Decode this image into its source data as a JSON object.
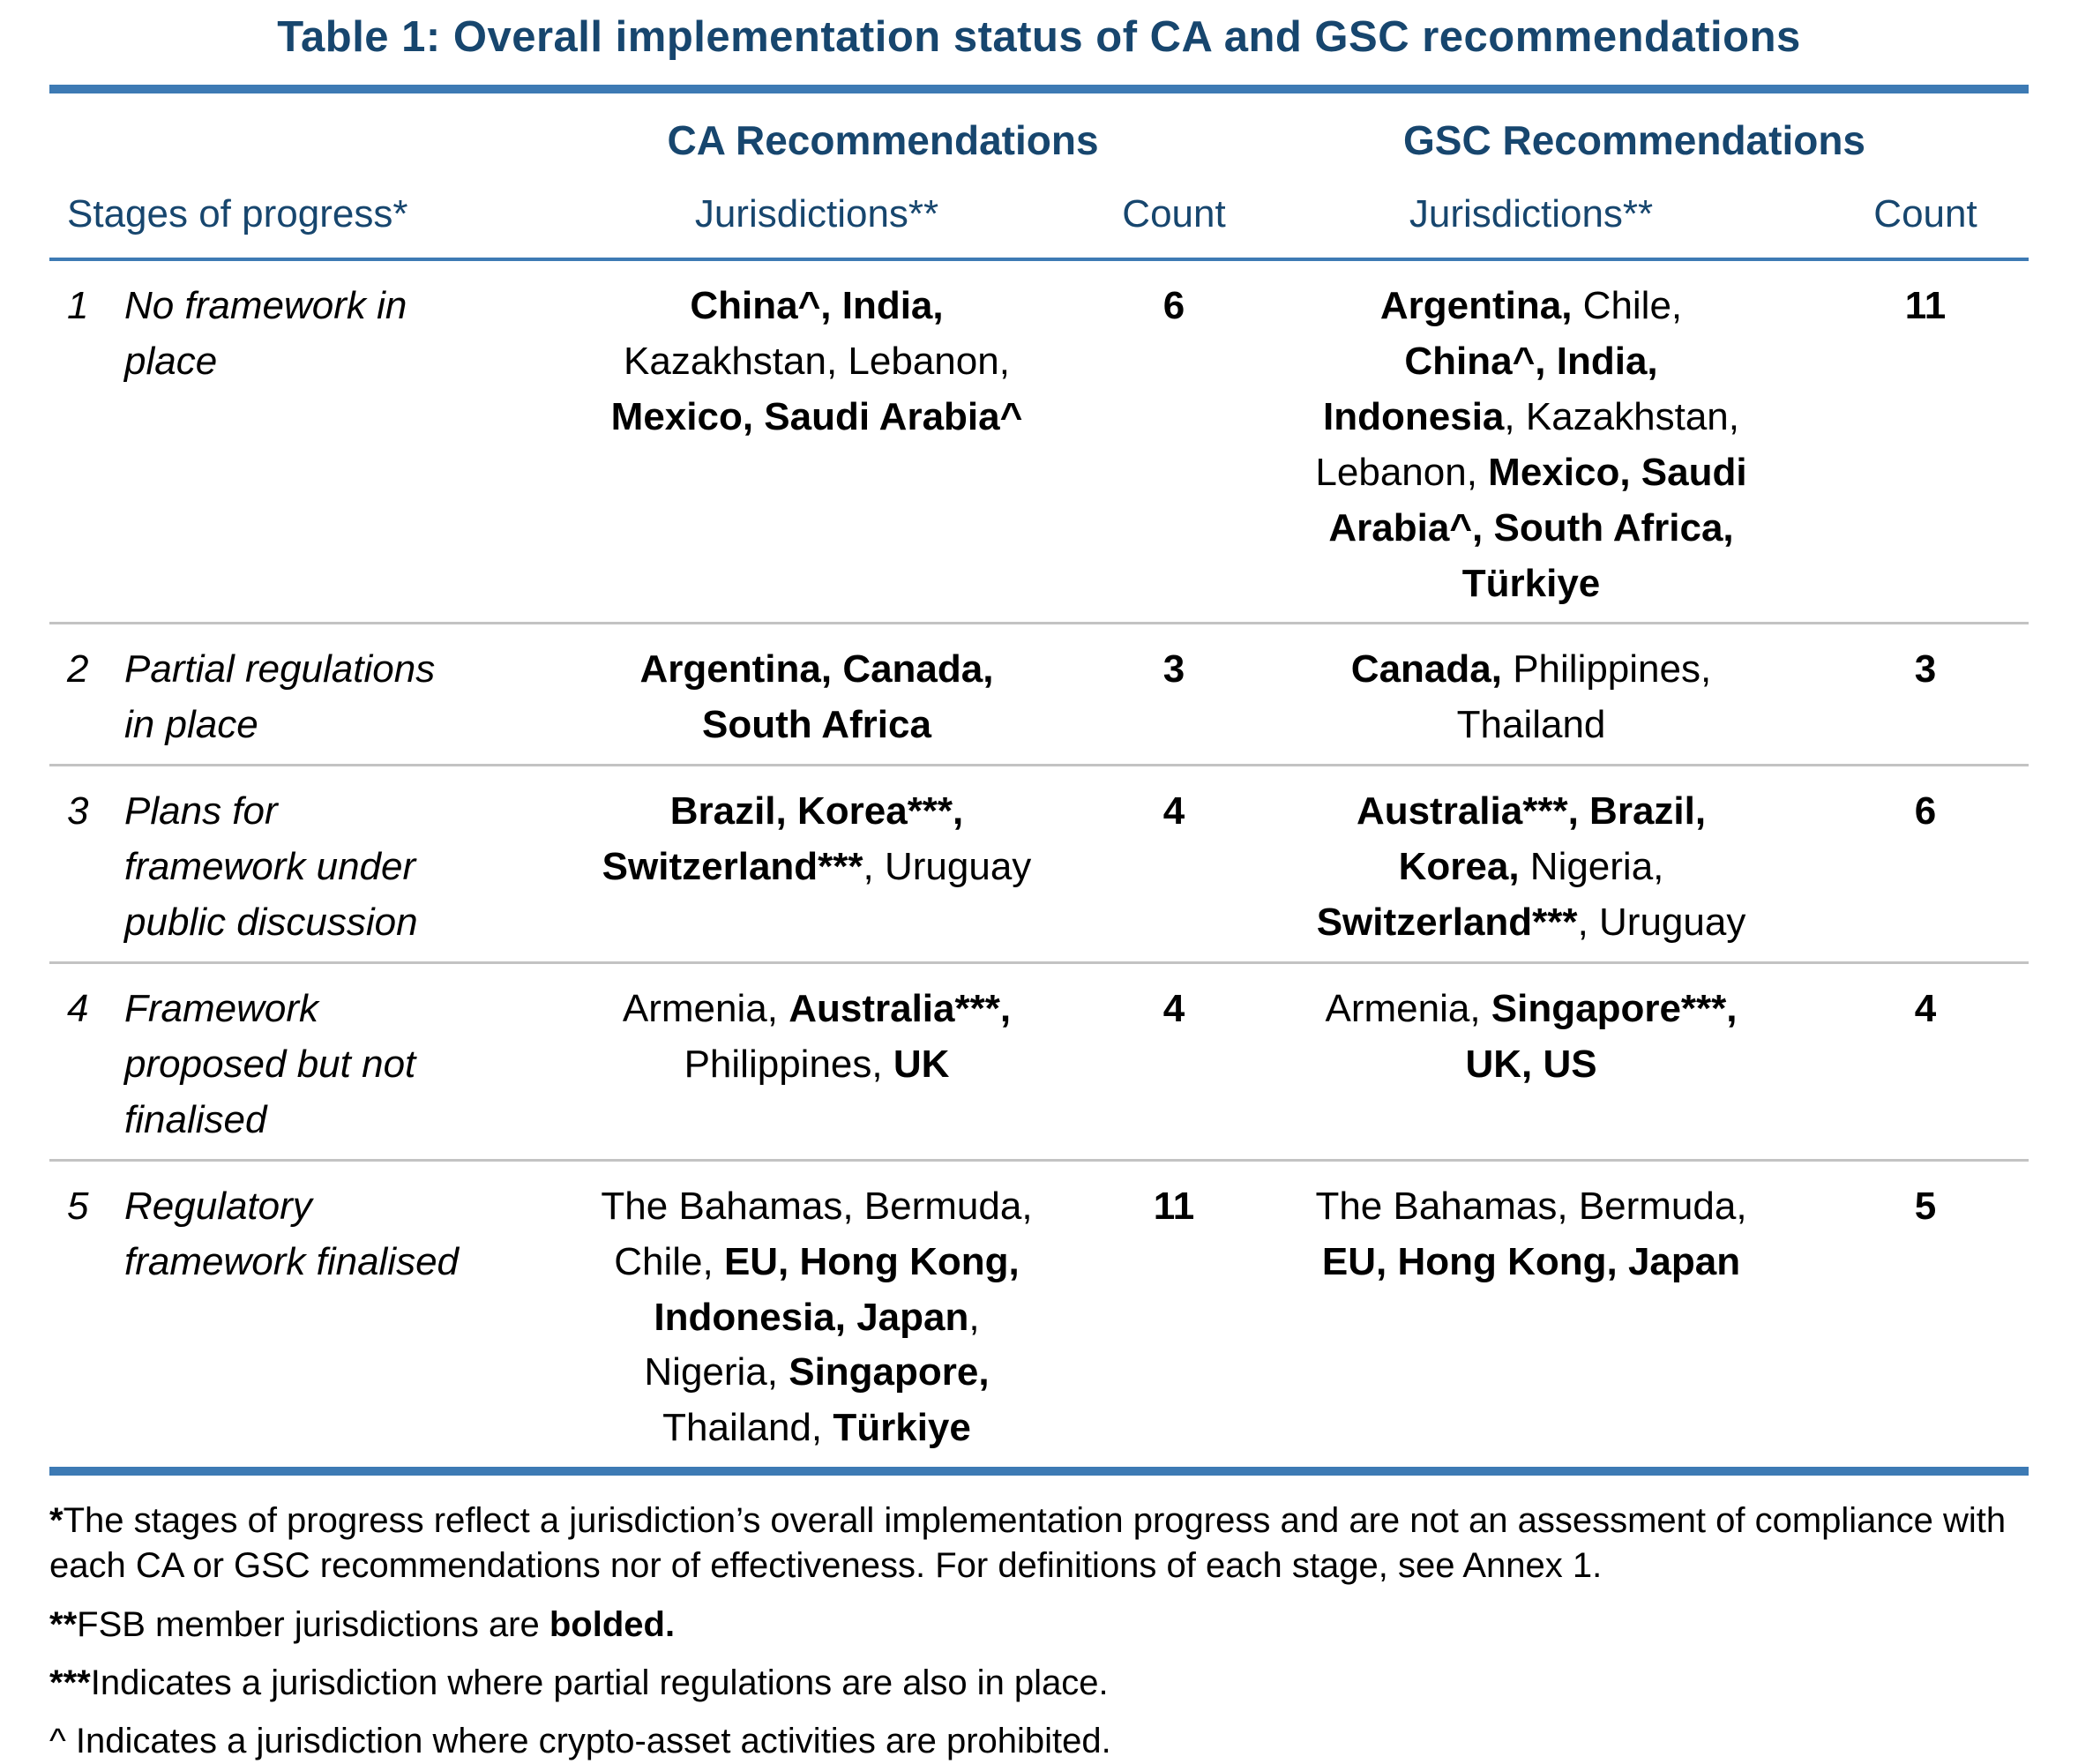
{
  "title": "Table 1: Overall implementation status of CA and GSC recommendations",
  "colors": {
    "navy": "#17466E",
    "bar_blue": "#3D7AB4",
    "separator_gray": "#C3C3C3",
    "text_black": "#000000"
  },
  "table": {
    "group_headers": {
      "ca": "CA Recommendations",
      "gsc": "GSC Recommendations"
    },
    "column_headers": {
      "stage": "Stages of progress*",
      "ca_jurisdictions": "Jurisdictions**",
      "ca_count": "Count",
      "gsc_jurisdictions": "Jurisdictions**",
      "gsc_count": "Count"
    },
    "rows": [
      {
        "num": "1",
        "stage_lines": [
          "No framework in",
          "place"
        ],
        "ca_jurisdictions": [
          {
            "text": "China^, India,",
            "bold": true
          },
          {
            "break": true
          },
          {
            "text": "Kazakhstan, Lebanon,"
          },
          {
            "break": true
          },
          {
            "text": "Mexico, Saudi Arabia^",
            "bold": true
          }
        ],
        "ca_count": "6",
        "gsc_jurisdictions": [
          {
            "text": "Argentina,",
            "bold": true
          },
          {
            "text": " Chile,"
          },
          {
            "break": true
          },
          {
            "text": "China^, India,",
            "bold": true
          },
          {
            "break": true
          },
          {
            "text": "Indonesia",
            "bold": true
          },
          {
            "text": ", Kazakhstan,"
          },
          {
            "break": true
          },
          {
            "text": "Lebanon, "
          },
          {
            "text": "Mexico, Saudi",
            "bold": true
          },
          {
            "break": true
          },
          {
            "text": "Arabia^, South Africa,",
            "bold": true
          },
          {
            "break": true
          },
          {
            "text": "Türkiye",
            "bold": true
          }
        ],
        "gsc_count": "11"
      },
      {
        "num": "2",
        "stage_lines": [
          "Partial regulations",
          "in place"
        ],
        "ca_jurisdictions": [
          {
            "text": "Argentina, Canada,",
            "bold": true
          },
          {
            "break": true
          },
          {
            "text": "South Africa",
            "bold": true
          }
        ],
        "ca_count": "3",
        "gsc_jurisdictions": [
          {
            "text": "Canada,",
            "bold": true
          },
          {
            "text": " Philippines,"
          },
          {
            "break": true
          },
          {
            "text": "Thailand"
          }
        ],
        "gsc_count": "3"
      },
      {
        "num": "3",
        "stage_lines": [
          "Plans for",
          "framework under",
          "public discussion"
        ],
        "ca_jurisdictions": [
          {
            "text": "Brazil, Korea***,",
            "bold": true
          },
          {
            "break": true
          },
          {
            "text": "Switzerland***",
            "bold": true
          },
          {
            "text": ", Uruguay"
          }
        ],
        "ca_count": "4",
        "gsc_jurisdictions": [
          {
            "text": "Australia***, Brazil,",
            "bold": true
          },
          {
            "break": true
          },
          {
            "text": "Korea,",
            "bold": true
          },
          {
            "text": " Nigeria,"
          },
          {
            "break": true
          },
          {
            "text": "Switzerland***",
            "bold": true
          },
          {
            "text": ", Uruguay"
          }
        ],
        "gsc_count": "6"
      },
      {
        "num": "4",
        "stage_lines": [
          "Framework",
          "proposed but not",
          "finalised"
        ],
        "ca_jurisdictions": [
          {
            "text": "Armenia, "
          },
          {
            "text": "Australia***,",
            "bold": true
          },
          {
            "break": true
          },
          {
            "text": "Philippines, "
          },
          {
            "text": "UK",
            "bold": true
          }
        ],
        "ca_count": "4",
        "gsc_jurisdictions": [
          {
            "text": "Armenia, "
          },
          {
            "text": "Singapore***,",
            "bold": true
          },
          {
            "break": true
          },
          {
            "text": "UK, US",
            "bold": true
          }
        ],
        "gsc_count": "4"
      },
      {
        "num": "5",
        "stage_lines": [
          "Regulatory",
          "framework finalised"
        ],
        "ca_jurisdictions": [
          {
            "text": "The Bahamas, Bermuda,"
          },
          {
            "break": true
          },
          {
            "text": "Chile, "
          },
          {
            "text": "EU, Hong Kong,",
            "bold": true
          },
          {
            "break": true
          },
          {
            "text": "Indonesia, Japan",
            "bold": true
          },
          {
            "text": ","
          },
          {
            "break": true
          },
          {
            "text": "Nigeria, "
          },
          {
            "text": "Singapore,",
            "bold": true
          },
          {
            "break": true
          },
          {
            "text": "Thailand, "
          },
          {
            "text": "Türkiye",
            "bold": true
          }
        ],
        "ca_count": "11",
        "gsc_jurisdictions": [
          {
            "text": "The Bahamas, Bermuda,"
          },
          {
            "break": true
          },
          {
            "text": "EU, Hong Kong, Japan",
            "bold": true
          }
        ],
        "gsc_count": "5"
      }
    ]
  },
  "footnotes": [
    [
      {
        "text": "*",
        "bold": true
      },
      {
        "text": "The stages of progress reflect a jurisdiction’s overall implementation progress and are not an assessment of compliance with each CA or GSC recommendations nor of effectiveness. For definitions of each stage, see Annex 1."
      }
    ],
    [
      {
        "text": "**",
        "bold": true
      },
      {
        "text": "FSB member jurisdictions are "
      },
      {
        "text": "bolded.",
        "bold": true
      }
    ],
    [
      {
        "text": "***",
        "bold": true
      },
      {
        "text": "Indicates a jurisdiction where partial regulations are also in place."
      }
    ],
    [
      {
        "text": "^ Indicates a jurisdiction where crypto-asset activities are prohibited."
      }
    ]
  ]
}
